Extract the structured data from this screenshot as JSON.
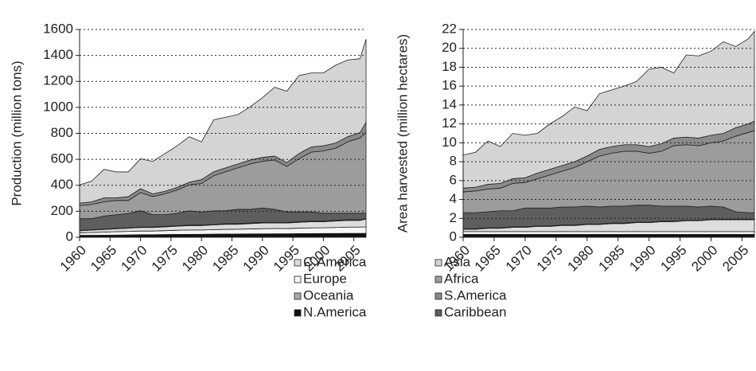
{
  "chart_data": [
    {
      "type": "stacked-area",
      "y_label": "Production (million tons)",
      "x": [
        1960,
        1962,
        1964,
        1966,
        1968,
        1970,
        1972,
        1974,
        1976,
        1978,
        1980,
        1982,
        1984,
        1986,
        1988,
        1990,
        1992,
        1994,
        1996,
        1998,
        2000,
        2002,
        2004,
        2006,
        2007
      ],
      "xlim": [
        1960,
        2007
      ],
      "xticks": [
        1960,
        1965,
        1970,
        1975,
        1980,
        1985,
        1990,
        1995,
        2000,
        2005
      ],
      "ylim": [
        0,
        1600
      ],
      "yticks": [
        0,
        200,
        400,
        600,
        800,
        1000,
        1200,
        1400,
        1600
      ],
      "grid": true,
      "series": [
        {
          "name": "N.America",
          "color": "#111111",
          "values": [
            15,
            15,
            16,
            17,
            18,
            20,
            20,
            21,
            22,
            22,
            23,
            24,
            25,
            25,
            26,
            26,
            27,
            27,
            28,
            28,
            29,
            29,
            30,
            30,
            30
          ]
        },
        {
          "name": "Europe",
          "color": "#f6f6f6",
          "values": [
            20,
            22,
            24,
            26,
            27,
            28,
            28,
            30,
            32,
            34,
            33,
            35,
            36,
            37,
            38,
            40,
            40,
            40,
            42,
            44,
            44,
            46,
            48,
            48,
            50
          ]
        },
        {
          "name": "C.America",
          "color": "#dddddd",
          "values": [
            15,
            18,
            20,
            22,
            25,
            27,
            27,
            29,
            31,
            34,
            34,
            36,
            39,
            38,
            41,
            44,
            43,
            43,
            45,
            48,
            47,
            50,
            52,
            52,
            60
          ]
        },
        {
          "name": "Oceania",
          "color": "#a8a8a8",
          "values": [
            3,
            3,
            3,
            3,
            3,
            4,
            4,
            4,
            4,
            4,
            4,
            4,
            5,
            5,
            5,
            5,
            5,
            5,
            5,
            5,
            5,
            5,
            5,
            5,
            5
          ]
        },
        {
          "name": "Caribbean",
          "color": "#5e5e5e",
          "values": [
            90,
            85,
            100,
            105,
            110,
            125,
            95,
            90,
            95,
            110,
            100,
            105,
            100,
            110,
            105,
            110,
            100,
            80,
            75,
            70,
            60,
            55,
            50,
            50,
            40
          ]
        },
        {
          "name": "Africa",
          "color": "#9c9c9c",
          "values": [
            100,
            110,
            110,
            110,
            100,
            140,
            140,
            160,
            180,
            200,
            220,
            270,
            300,
            320,
            350,
            360,
            380,
            350,
            410,
            460,
            480,
            500,
            550,
            580,
            620
          ]
        },
        {
          "name": "S.America",
          "color": "#8a8a8a",
          "values": [
            20,
            20,
            30,
            20,
            30,
            30,
            20,
            20,
            20,
            20,
            30,
            30,
            30,
            30,
            30,
            30,
            30,
            30,
            40,
            40,
            40,
            40,
            40,
            40,
            80
          ]
        },
        {
          "name": "Asia",
          "color": "#d4d4d4",
          "values": [
            140,
            160,
            220,
            200,
            190,
            230,
            250,
            290,
            320,
            350,
            290,
            400,
            390,
            380,
            410,
            460,
            530,
            550,
            600,
            570,
            560,
            600,
            590,
            570,
            640
          ]
        }
      ]
    },
    {
      "type": "stacked-area",
      "y_label": "Area harvested (million hectares)",
      "x": [
        1960,
        1962,
        1964,
        1966,
        1968,
        1970,
        1972,
        1974,
        1976,
        1978,
        1980,
        1982,
        1984,
        1986,
        1988,
        1990,
        1992,
        1994,
        1996,
        1998,
        2000,
        2002,
        2004,
        2006,
        2007
      ],
      "xlim": [
        1960,
        2007
      ],
      "xticks": [
        1960,
        1965,
        1970,
        1975,
        1980,
        1985,
        1990,
        1995,
        2000,
        2005
      ],
      "ylim": [
        0,
        22
      ],
      "yticks": [
        0,
        2,
        4,
        6,
        8,
        10,
        12,
        14,
        16,
        18,
        20,
        22
      ],
      "grid": true,
      "series": [
        {
          "name": "N.America",
          "color": "#111111",
          "values": [
            0.3,
            0.3,
            0.3,
            0.3,
            0.3,
            0.3,
            0.3,
            0.3,
            0.3,
            0.3,
            0.3,
            0.3,
            0.3,
            0.3,
            0.3,
            0.3,
            0.3,
            0.3,
            0.3,
            0.3,
            0.3,
            0.3,
            0.3,
            0.3,
            0.3
          ]
        },
        {
          "name": "Europe",
          "color": "#f6f6f6",
          "values": [
            0.3,
            0.3,
            0.3,
            0.3,
            0.3,
            0.3,
            0.3,
            0.3,
            0.3,
            0.3,
            0.3,
            0.3,
            0.3,
            0.3,
            0.3,
            0.3,
            0.3,
            0.3,
            0.3,
            0.3,
            0.3,
            0.3,
            0.3,
            0.3,
            0.3
          ]
        },
        {
          "name": "C.America",
          "color": "#dddddd",
          "values": [
            0.25,
            0.25,
            0.35,
            0.35,
            0.45,
            0.45,
            0.55,
            0.55,
            0.65,
            0.65,
            0.75,
            0.75,
            0.85,
            0.85,
            0.95,
            0.95,
            1.05,
            1.05,
            1.15,
            1.15,
            1.25,
            1.25,
            1.25,
            1.25,
            1.25
          ]
        },
        {
          "name": "Oceania",
          "color": "#a8a8a8",
          "values": [
            0.05,
            0.05,
            0.05,
            0.05,
            0.05,
            0.05,
            0.05,
            0.05,
            0.05,
            0.05,
            0.05,
            0.05,
            0.05,
            0.05,
            0.05,
            0.05,
            0.05,
            0.05,
            0.05,
            0.05,
            0.05,
            0.05,
            0.05,
            0.05,
            0.05
          ]
        },
        {
          "name": "Caribbean",
          "color": "#5e5e5e",
          "values": [
            1.7,
            1.7,
            1.7,
            1.8,
            1.7,
            2.0,
            1.9,
            1.9,
            1.9,
            1.9,
            1.9,
            1.8,
            1.8,
            1.8,
            1.8,
            1.8,
            1.6,
            1.6,
            1.5,
            1.4,
            1.4,
            1.3,
            0.8,
            0.7,
            0.7
          ]
        },
        {
          "name": "Africa",
          "color": "#9c9c9c",
          "values": [
            2.2,
            2.3,
            2.4,
            2.4,
            2.9,
            2.7,
            3.1,
            3.5,
            3.8,
            4.2,
            4.7,
            5.4,
            5.6,
            5.8,
            5.7,
            5.5,
            5.8,
            6.4,
            6.5,
            6.5,
            6.7,
            7.0,
            8.0,
            8.5,
            8.7
          ]
        },
        {
          "name": "S.America",
          "color": "#8a8a8a",
          "values": [
            0.4,
            0.4,
            0.5,
            0.5,
            0.5,
            0.5,
            0.6,
            0.6,
            0.6,
            0.6,
            0.6,
            0.7,
            0.7,
            0.7,
            0.7,
            0.7,
            0.8,
            0.8,
            0.8,
            0.8,
            0.8,
            0.8,
            0.9,
            0.9,
            1.0
          ]
        },
        {
          "name": "Asia",
          "color": "#d4d4d4",
          "values": [
            3.5,
            3.7,
            4.6,
            3.9,
            4.8,
            4.5,
            4.2,
            4.8,
            5.2,
            5.8,
            4.8,
            5.9,
            6.0,
            6.2,
            6.7,
            8.2,
            8.1,
            6.9,
            8.7,
            8.7,
            8.9,
            9.7,
            8.6,
            9.0,
            9.5
          ]
        }
      ]
    }
  ]
}
